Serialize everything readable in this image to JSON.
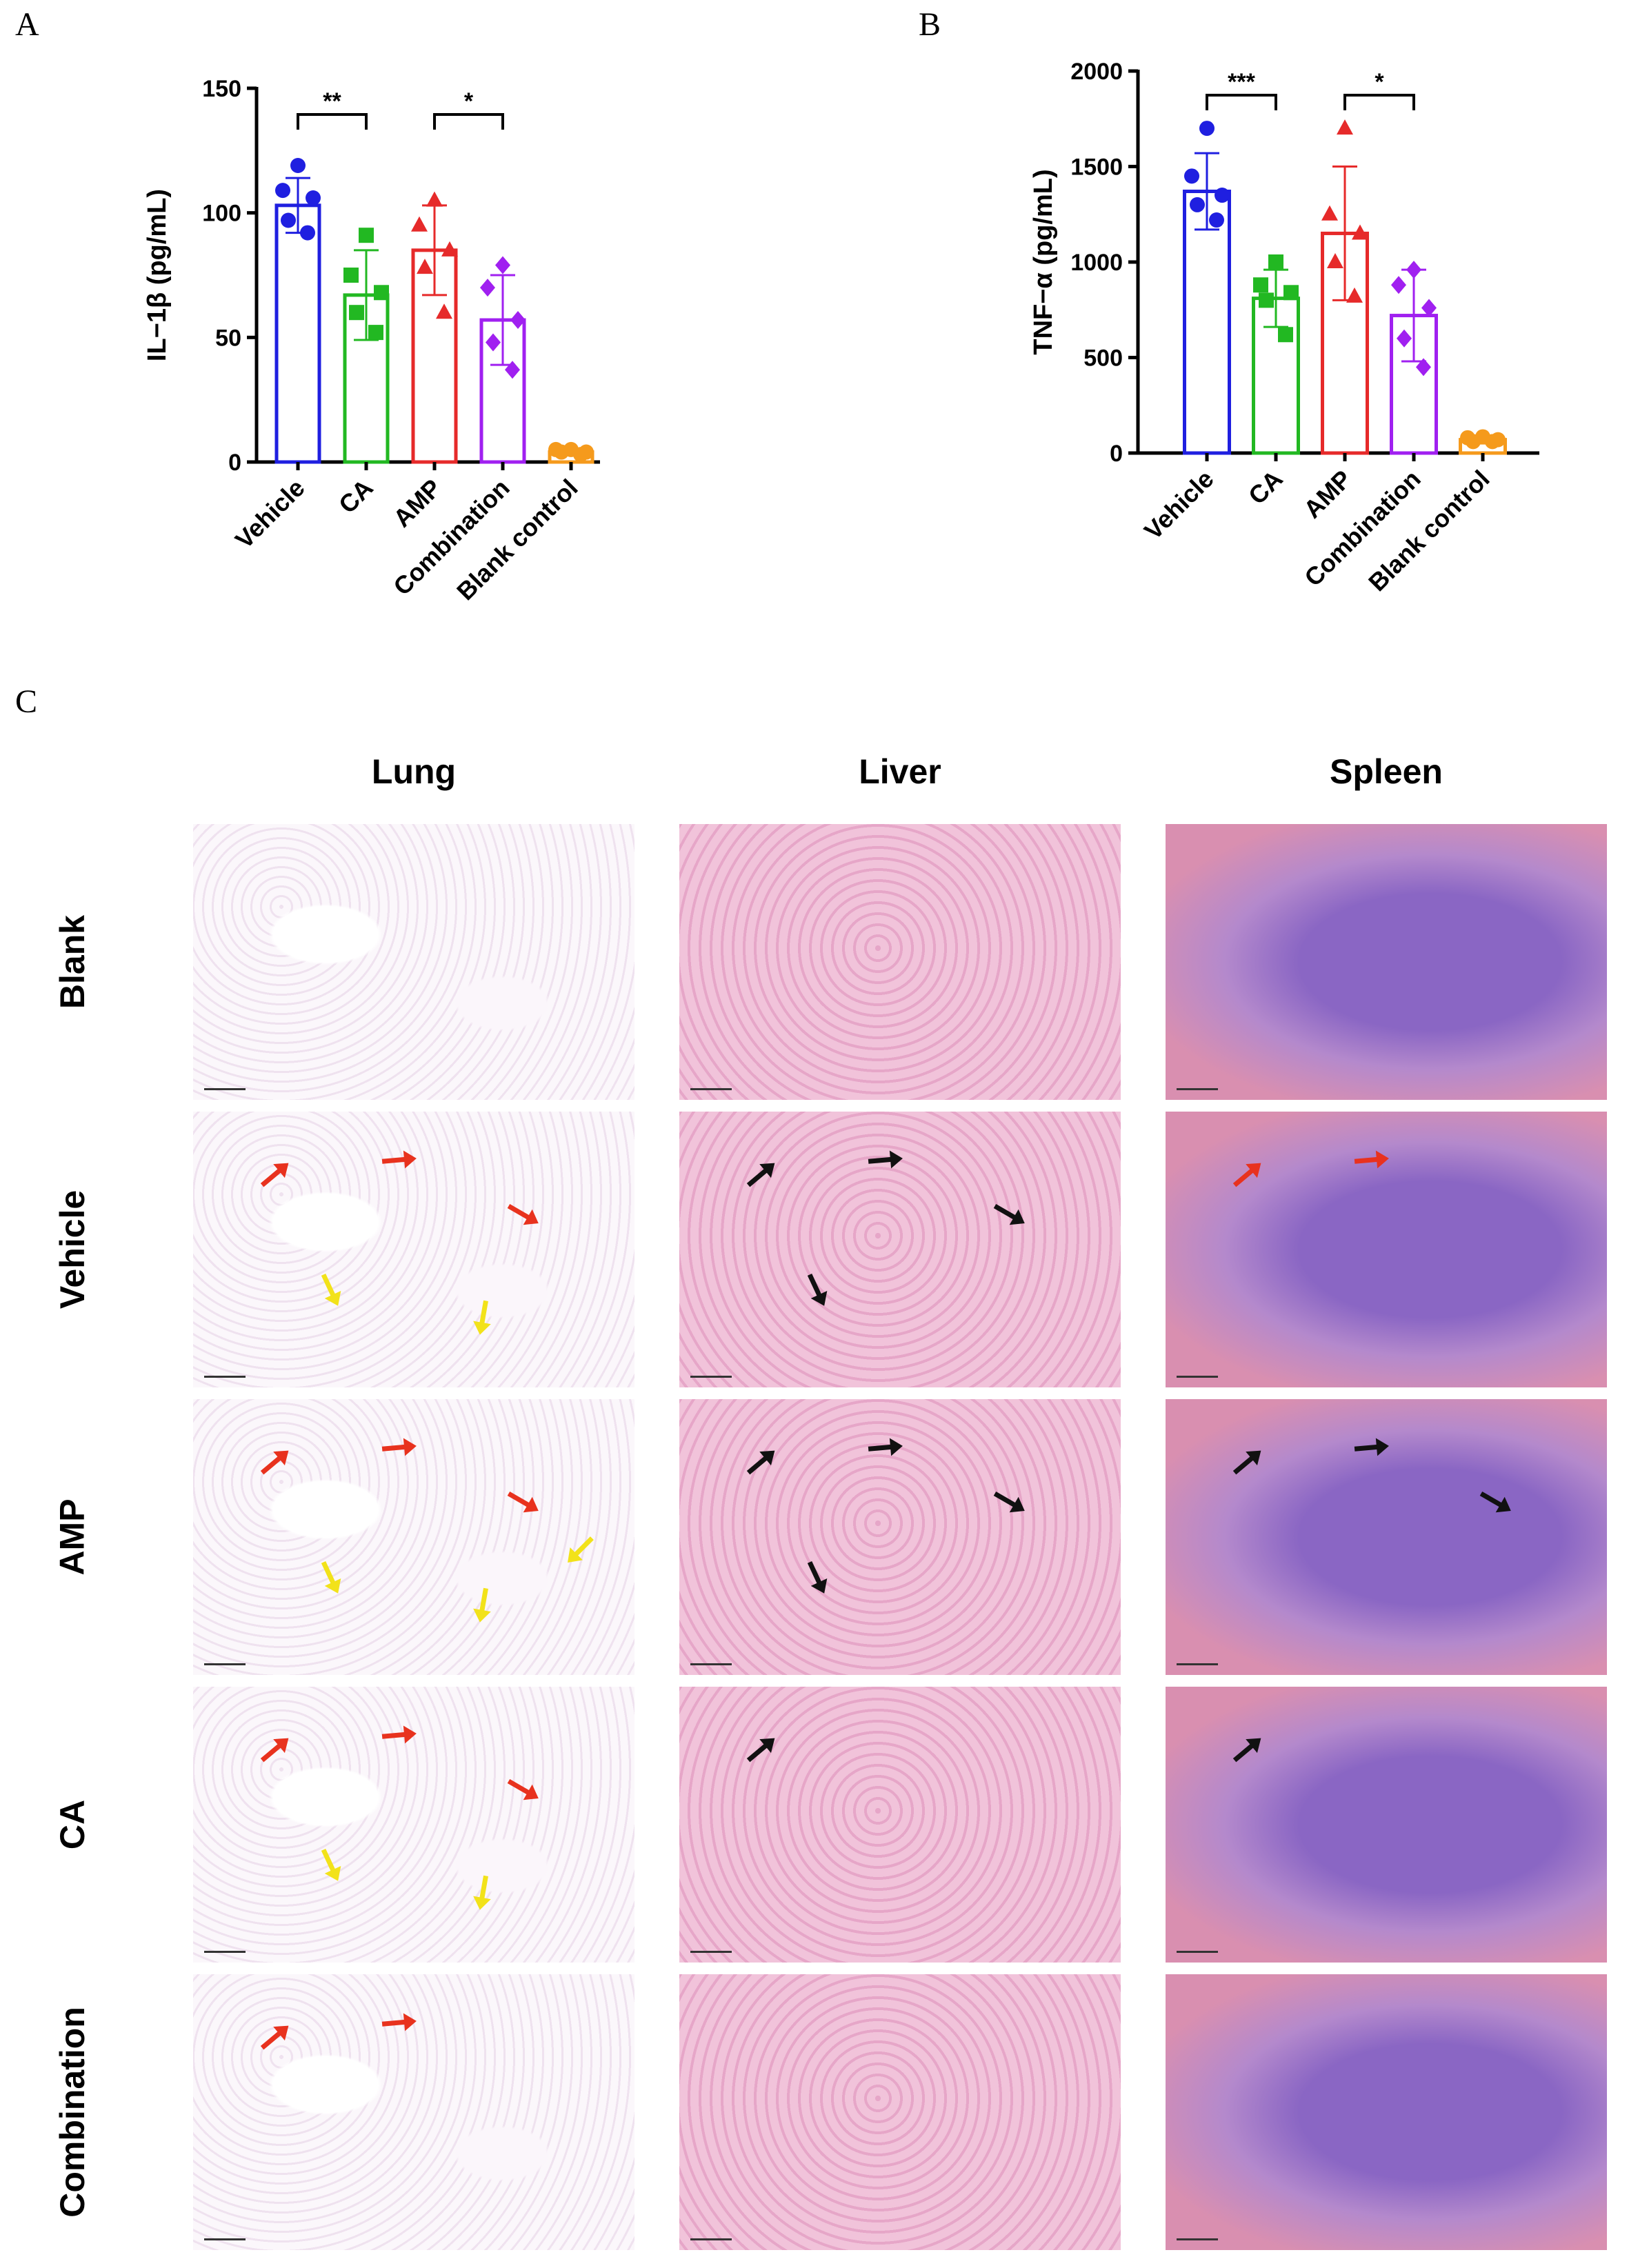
{
  "panels": {
    "a_letter": "A",
    "b_letter": "B",
    "c_letter": "C"
  },
  "chart_data": [
    {
      "type": "bar",
      "panel": "A",
      "ylabel": "IL−1β (pg/mL)",
      "xlabel": "",
      "ylim": [
        0,
        150
      ],
      "yticks": [
        0,
        50,
        100,
        150
      ],
      "categories": [
        "Vehicle",
        "CA",
        "AMP",
        "Combination",
        "Blank control"
      ],
      "colors": [
        "#1f1fe0",
        "#22b822",
        "#e62a2a",
        "#a020f0",
        "#f59a1c"
      ],
      "markers": [
        "circle",
        "square",
        "triangle",
        "diamond",
        "circle"
      ],
      "values": [
        103,
        67,
        85,
        57,
        4
      ],
      "sd": [
        11,
        18,
        18,
        18,
        1
      ],
      "points": [
        [
          119,
          109,
          106,
          97,
          92
        ],
        [
          91,
          75,
          68,
          60,
          52
        ],
        [
          105,
          95,
          85,
          78,
          60
        ],
        [
          79,
          70,
          57,
          48,
          37
        ],
        [
          5,
          5,
          4,
          4,
          3
        ]
      ],
      "significance": [
        {
          "from": "Vehicle",
          "to": "CA",
          "label": "**"
        },
        {
          "from": "AMP",
          "to": "Combination",
          "label": "*"
        }
      ]
    },
    {
      "type": "bar",
      "panel": "B",
      "ylabel": "TNF−α (pg/mL)",
      "xlabel": "",
      "ylim": [
        0,
        2000
      ],
      "yticks": [
        0,
        500,
        1000,
        1500,
        2000
      ],
      "categories": [
        "Vehicle",
        "CA",
        "AMP",
        "Combination",
        "Blank control"
      ],
      "colors": [
        "#1f1fe0",
        "#22b822",
        "#e62a2a",
        "#a020f0",
        "#f59a1c"
      ],
      "markers": [
        "circle",
        "square",
        "triangle",
        "diamond",
        "circle"
      ],
      "values": [
        1370,
        810,
        1150,
        720,
        70
      ],
      "sd": [
        200,
        150,
        350,
        240,
        20
      ],
      "points": [
        [
          1700,
          1450,
          1350,
          1300,
          1220
        ],
        [
          1000,
          880,
          840,
          800,
          620
        ],
        [
          1700,
          1250,
          1150,
          1000,
          820
        ],
        [
          960,
          880,
          760,
          600,
          450
        ],
        [
          85,
          80,
          70,
          60,
          60
        ]
      ],
      "significance": [
        {
          "from": "Vehicle",
          "to": "CA",
          "label": "***"
        },
        {
          "from": "AMP",
          "to": "Combination",
          "label": "*"
        }
      ]
    }
  ],
  "histology": {
    "columns": [
      "Lung",
      "Liver",
      "Spleen"
    ],
    "rows": [
      "Blank",
      "Vehicle",
      "AMP",
      "CA",
      "Combination"
    ],
    "arrow_colors": {
      "red": "#e8321e",
      "yellow": "#f2e21a",
      "black": "#111111"
    },
    "arrows": [
      [
        [],
        [],
        []
      ],
      [
        [
          "red",
          "red",
          "red",
          "yellow",
          "yellow"
        ],
        [
          "black",
          "black",
          "black",
          "black"
        ],
        [
          "red",
          "red"
        ]
      ],
      [
        [
          "red",
          "red",
          "red",
          "yellow",
          "yellow",
          "yellow"
        ],
        [
          "black",
          "black",
          "black",
          "black"
        ],
        [
          "black",
          "black",
          "black"
        ]
      ],
      [
        [
          "red",
          "red",
          "red",
          "yellow",
          "yellow"
        ],
        [
          "black"
        ],
        [
          "black"
        ]
      ],
      [
        [
          "red",
          "red"
        ],
        [],
        []
      ]
    ]
  }
}
